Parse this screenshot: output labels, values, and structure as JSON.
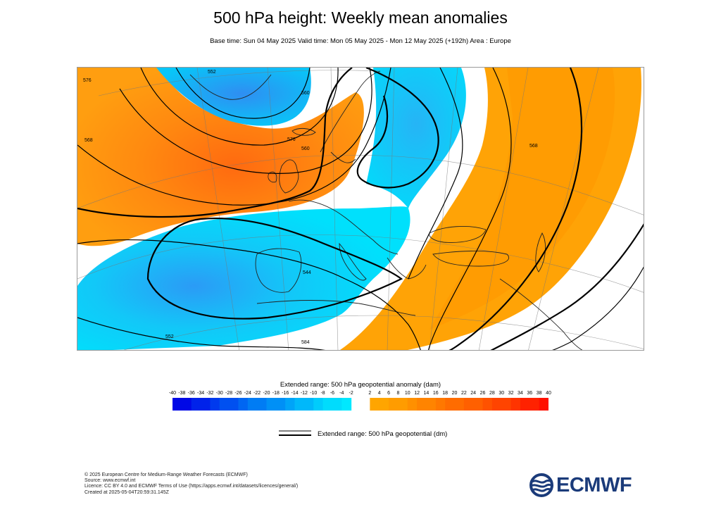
{
  "header": {
    "title": "500 hPa height: Weekly mean anomalies",
    "subtitle": "Base time: Sun 04 May 2025 Valid time: Mon 05 May 2025 - Mon 12 May 2025 (+192h) Area : Europe"
  },
  "map": {
    "area": "Europe",
    "contour_labels": [
      "552",
      "560",
      "568",
      "576",
      "576",
      "560",
      "568",
      "544",
      "552",
      "584"
    ]
  },
  "colorbar": {
    "title": "Extended range: 500 hPa geopotential anomaly (dam)",
    "ticks": [
      "-40",
      "-38",
      "-36",
      "-34",
      "-32",
      "-30",
      "-28",
      "-26",
      "-24",
      "-22",
      "-20",
      "-18",
      "-16",
      "-14",
      "-12",
      "-10",
      "-8",
      "-6",
      "-4",
      "-2",
      "2",
      "4",
      "6",
      "8",
      "10",
      "12",
      "14",
      "16",
      "18",
      "20",
      "22",
      "24",
      "26",
      "28",
      "30",
      "32",
      "34",
      "36",
      "38",
      "40"
    ],
    "negative_colors": [
      "#0008e6",
      "#0022ea",
      "#003aee",
      "#0050f0",
      "#0066f2",
      "#007cf4",
      "#0090f6",
      "#00a4f8",
      "#00b8fa",
      "#00ccfc",
      "#00dcfd",
      "#00e8ff"
    ],
    "positive_colors": [
      "#ffa500",
      "#ff9c00",
      "#ff9000",
      "#ff8400",
      "#ff7800",
      "#ff6c00",
      "#ff6000",
      "#ff5200",
      "#ff4400",
      "#ff3400",
      "#ff2200",
      "#ff1000"
    ]
  },
  "legend": {
    "contour_label": "Extended range: 500 hPa geopotential (dm)"
  },
  "footer": {
    "copyright": "© 2025 European Centre for Medium-Range Weather Forecasts (ECMWF)",
    "source": "Source: www.ecmwf.int",
    "licence": "Licence: CC BY 4.0 and ECMWF Terms of Use (https://apps.ecmwf.int/datasets/licences/general/)",
    "created": "Created at 2025-05-04T20:59:31.145Z"
  },
  "logo": {
    "text": "ECMWF",
    "color": "#1b3b7a"
  }
}
